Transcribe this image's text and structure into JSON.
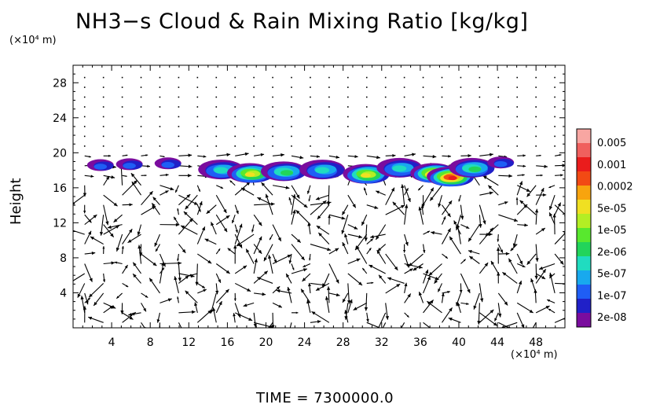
{
  "chart_data": {
    "type": "heatmap",
    "title": "NH3−s Cloud & Rain Mixing Ratio [kg/kg]",
    "ylabel": "Height",
    "x_unit": "(×10⁴ m)",
    "y_unit": "(×10⁴ m)",
    "footer": "TIME = 7300000.0",
    "xlim": [
      0,
      51
    ],
    "ylim": [
      0,
      30
    ],
    "x_ticks": [
      4,
      8,
      12,
      16,
      20,
      24,
      28,
      32,
      36,
      40,
      44,
      48
    ],
    "y_ticks": [
      4,
      8,
      12,
      16,
      20,
      24,
      28
    ],
    "legend_position": "right",
    "colorbar": {
      "labels": [
        "0.005",
        "0.001",
        "0.0002",
        "5e-05",
        "1e-05",
        "2e-06",
        "5e-07",
        "1e-07",
        "2e-08"
      ],
      "colors": [
        "#7a0c9e",
        "#2020c8",
        "#1f5ef5",
        "#18a9ee",
        "#20dcc0",
        "#22d45a",
        "#58e82e",
        "#b4ee24",
        "#f0e022",
        "#f8a40e",
        "#f24a14",
        "#ea1c1c",
        "#f0605e",
        "#f8a6a2"
      ]
    },
    "cloud_regions": [
      {
        "x": 3.0,
        "y": 18.5,
        "level": 2
      },
      {
        "x": 6.0,
        "y": 18.6,
        "level": 2
      },
      {
        "x": 10.0,
        "y": 18.7,
        "level": 2
      },
      {
        "x": 15.5,
        "y": 18.0,
        "level": 4
      },
      {
        "x": 18.5,
        "y": 17.6,
        "level": 8
      },
      {
        "x": 22.0,
        "y": 17.8,
        "level": 5
      },
      {
        "x": 26.0,
        "y": 18.0,
        "level": 4
      },
      {
        "x": 30.5,
        "y": 17.5,
        "level": 8
      },
      {
        "x": 34.0,
        "y": 18.2,
        "level": 4
      },
      {
        "x": 37.5,
        "y": 17.6,
        "level": 10
      },
      {
        "x": 39.2,
        "y": 17.2,
        "level": 11
      },
      {
        "x": 41.5,
        "y": 18.2,
        "level": 5
      },
      {
        "x": 44.5,
        "y": 18.8,
        "level": 2
      }
    ]
  }
}
